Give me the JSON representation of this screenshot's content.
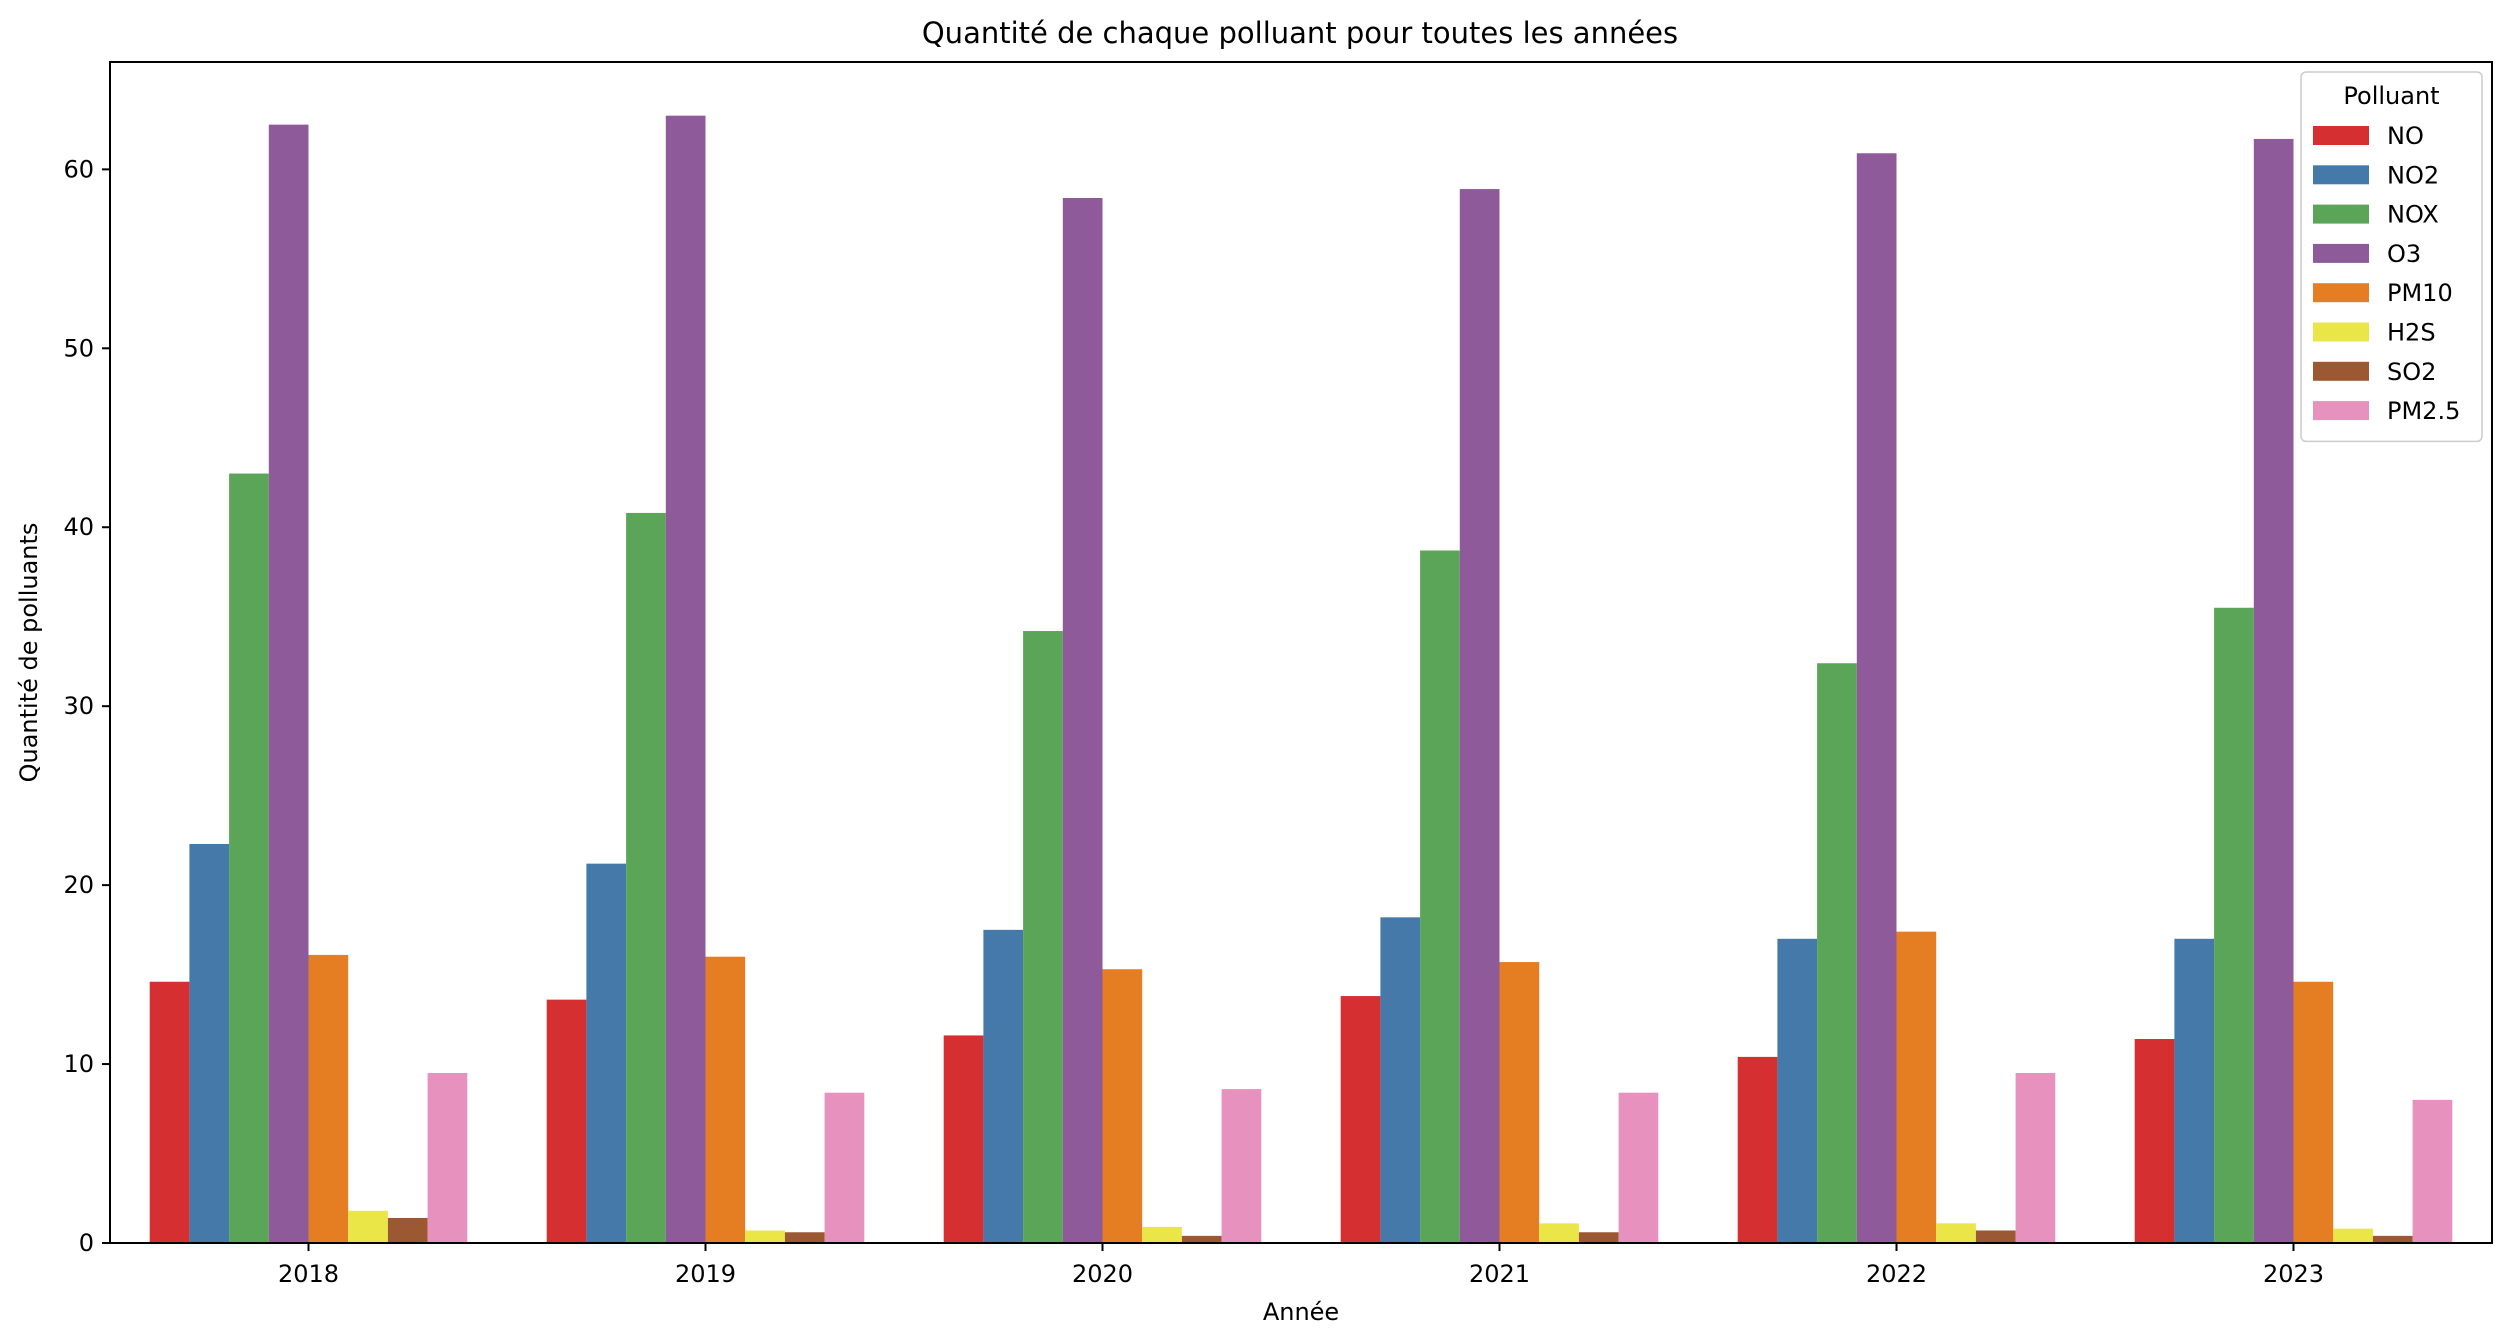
{
  "chart_data": {
    "type": "bar",
    "title": "Quantité de chaque polluant pour toutes les années",
    "xlabel": "Année",
    "ylabel": "Quantité de polluants",
    "ylim": [
      0,
      66
    ],
    "yticks": [
      0,
      10,
      20,
      30,
      40,
      50,
      60
    ],
    "categories": [
      "2018",
      "2019",
      "2020",
      "2021",
      "2022",
      "2023"
    ],
    "legend": {
      "title": "Polluant",
      "placement": "top-right"
    },
    "grid": false,
    "series": [
      {
        "name": "NO",
        "color": "#d62f32",
        "values": [
          14.6,
          13.6,
          11.6,
          13.8,
          10.4,
          11.4
        ]
      },
      {
        "name": "NO2",
        "color": "#4479a9",
        "values": [
          22.3,
          21.2,
          17.5,
          18.2,
          17.0,
          17.0
        ]
      },
      {
        "name": "NOX",
        "color": "#5aa557",
        "values": [
          43.0,
          40.8,
          34.2,
          38.7,
          32.4,
          35.5
        ]
      },
      {
        "name": "O3",
        "color": "#8f5a9a",
        "values": [
          62.5,
          63.0,
          58.4,
          58.9,
          60.9,
          61.7
        ]
      },
      {
        "name": "PM10",
        "color": "#e57e22",
        "values": [
          16.1,
          16.0,
          15.3,
          15.7,
          17.4,
          14.6
        ]
      },
      {
        "name": "H2S",
        "color": "#ebe647",
        "values": [
          1.8,
          0.7,
          0.9,
          1.1,
          1.1,
          0.8
        ]
      },
      {
        "name": "SO2",
        "color": "#9b5833",
        "values": [
          1.4,
          0.6,
          0.4,
          0.6,
          0.7,
          0.4
        ]
      },
      {
        "name": "PM2.5",
        "color": "#e791be",
        "values": [
          9.5,
          8.4,
          8.6,
          8.4,
          9.5,
          8.0
        ]
      }
    ]
  }
}
